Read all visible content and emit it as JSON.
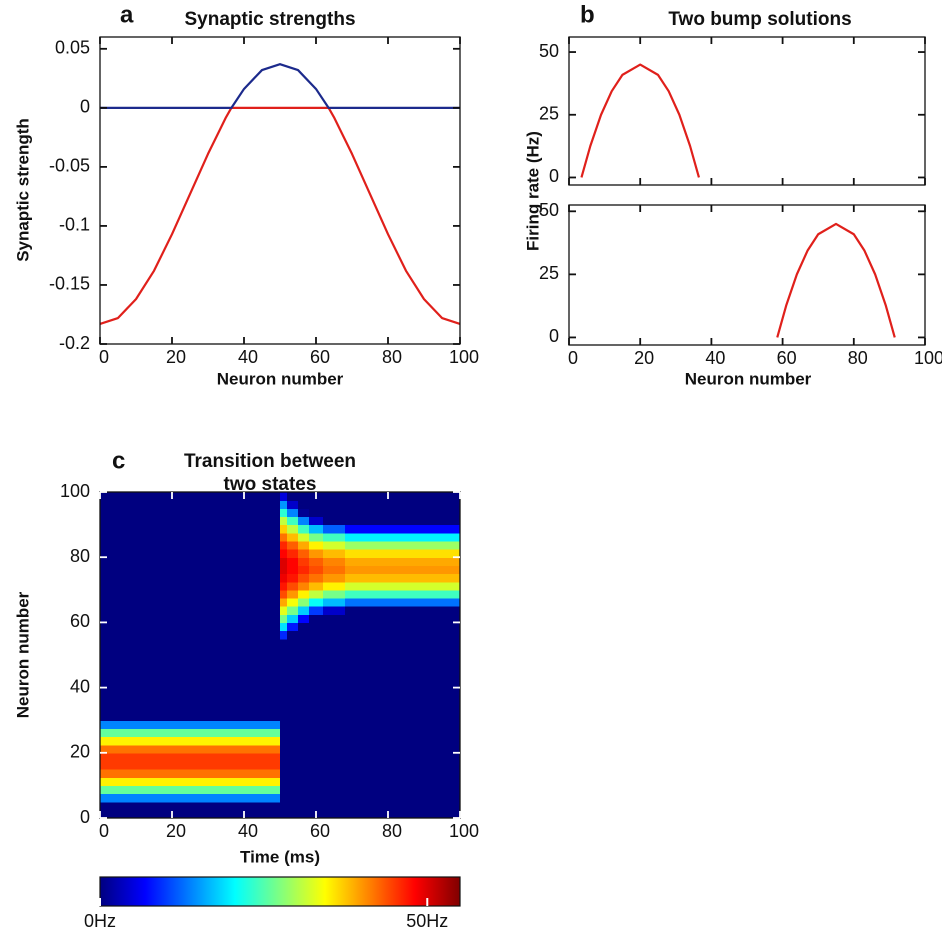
{
  "chart_data": [
    {
      "type": "line",
      "panel": "a",
      "title": "Synaptic strengths",
      "xlabel": "Neuron number",
      "ylabel": "Synaptic strength",
      "x": [
        0,
        5,
        10,
        15,
        20,
        25,
        30,
        35,
        36.5,
        40,
        45,
        50,
        55,
        60,
        63.5,
        65,
        70,
        75,
        80,
        85,
        90,
        95,
        100
      ],
      "series": [
        {
          "color": "#e0201b",
          "values": [
            -0.183,
            -0.178,
            -0.162,
            -0.138,
            -0.107,
            -0.073,
            -0.039,
            -0.008,
            0,
            0,
            0,
            0,
            0,
            0,
            0,
            -0.008,
            -0.039,
            -0.073,
            -0.107,
            -0.138,
            -0.162,
            -0.178,
            -0.183
          ]
        },
        {
          "color": "#1c2a8c",
          "values": [
            0,
            0,
            0,
            0,
            0,
            0,
            0,
            0,
            0,
            0.016,
            0.032,
            0.037,
            0.032,
            0.016,
            0,
            0,
            0,
            0,
            0,
            0,
            0,
            0,
            0
          ]
        }
      ],
      "xlim": [
        0,
        100
      ],
      "xticks": [
        0,
        20,
        40,
        60,
        80,
        100
      ],
      "ylim": [
        -0.2,
        0.06
      ],
      "yticks": [
        0.05,
        0,
        -0.05,
        -0.1,
        -0.15,
        -0.2
      ],
      "grid": false
    },
    {
      "type": "line",
      "panel": "b",
      "title": "Two bump solutions",
      "ylabel": "Firing rate (Hz)",
      "x": [
        3.5,
        6,
        9,
        12,
        15,
        20,
        25,
        28,
        31,
        34,
        36.5
      ],
      "series": [
        {
          "color": "#e0201b",
          "values": [
            0,
            12.6,
            25,
            34.4,
            40.9,
            45,
            40.9,
            34.4,
            25,
            12.6,
            0
          ]
        }
      ],
      "xlim": [
        0,
        100
      ],
      "xticks": [
        0,
        20,
        40,
        60,
        80,
        100
      ],
      "show_xtick_labels": false,
      "ylim": [
        -3,
        56
      ],
      "yticks": [
        0,
        25,
        50
      ],
      "grid": false
    },
    {
      "type": "line",
      "xlabel": "Neuron number",
      "x": [
        58.5,
        61,
        64,
        67,
        70,
        75,
        80,
        83,
        86,
        89,
        91.5
      ],
      "series": [
        {
          "color": "#e0201b",
          "values": [
            0,
            12.6,
            25,
            34.4,
            40.9,
            45,
            40.9,
            34.4,
            25,
            12.6,
            0
          ]
        }
      ],
      "xlim": [
        0,
        100
      ],
      "xticks": [
        0,
        20,
        40,
        60,
        80,
        100
      ],
      "ylim": [
        -3,
        52.5
      ],
      "yticks": [
        0,
        25,
        50
      ],
      "grid": false
    },
    {
      "type": "heatmap",
      "panel": "c",
      "title": [
        "Transition between",
        "two states"
      ],
      "xlabel": "Time (ms)",
      "ylabel": "Neuron number",
      "xbins": [
        0,
        50,
        52,
        55,
        58,
        62,
        68,
        100
      ],
      "ybins": [
        0,
        2.5,
        5,
        7.5,
        10,
        12.5,
        15,
        17.5,
        20,
        22.5,
        25,
        27.5,
        30,
        32.5,
        35,
        37.5,
        40,
        42.5,
        45,
        47.5,
        50,
        52.5,
        55,
        57.5,
        60,
        62.5,
        65,
        67.5,
        70,
        72.5,
        75,
        77.5,
        80,
        82.5,
        85,
        87.5,
        90,
        92.5,
        95,
        97.5,
        100
      ],
      "z": [
        [
          0,
          0,
          14,
          26,
          35,
          42,
          45,
          45,
          42,
          35,
          26,
          14,
          0,
          0,
          0,
          0,
          0,
          0,
          0,
          0,
          0,
          0,
          0,
          0,
          0,
          0,
          0,
          0,
          0,
          0,
          0,
          0,
          0,
          0,
          0,
          0,
          0,
          0,
          0,
          0
        ],
        [
          0,
          0,
          0,
          0,
          0,
          0,
          0,
          0,
          0,
          0,
          0,
          0,
          0,
          0,
          0,
          0,
          0,
          0,
          0,
          0,
          0,
          0,
          9,
          19,
          27,
          33,
          39,
          44,
          47,
          49,
          50,
          50,
          48,
          46,
          42,
          37,
          31,
          23,
          15,
          5
        ],
        [
          0,
          0,
          0,
          0,
          0,
          0,
          0,
          0,
          0,
          0,
          0,
          0,
          0,
          0,
          0,
          0,
          0,
          0,
          0,
          0,
          0,
          0,
          0,
          8,
          18,
          27,
          34,
          40,
          44,
          47,
          48,
          48,
          46,
          43,
          38,
          31,
          24,
          14,
          4,
          0
        ],
        [
          0,
          0,
          0,
          0,
          0,
          0,
          0,
          0,
          0,
          0,
          0,
          0,
          0,
          0,
          0,
          0,
          0,
          0,
          0,
          0,
          0,
          0,
          0,
          0,
          7,
          18,
          28,
          35,
          41,
          44,
          46,
          45,
          43,
          39,
          32,
          24,
          14,
          1,
          0,
          0
        ],
        [
          0,
          0,
          0,
          0,
          0,
          0,
          0,
          0,
          0,
          0,
          0,
          0,
          0,
          0,
          0,
          0,
          0,
          0,
          0,
          0,
          0,
          0,
          0,
          0,
          0,
          10,
          21,
          31,
          38,
          42,
          44,
          43,
          40,
          35,
          27,
          17,
          4,
          0,
          0,
          0
        ],
        [
          0,
          0,
          0,
          0,
          0,
          0,
          0,
          0,
          0,
          0,
          0,
          0,
          0,
          0,
          0,
          0,
          0,
          0,
          0,
          0,
          0,
          0,
          0,
          0,
          0,
          4,
          17,
          27,
          35,
          40,
          42,
          41,
          38,
          32,
          24,
          12,
          0,
          0,
          0,
          0
        ],
        [
          0,
          0,
          0,
          0,
          0,
          0,
          0,
          0,
          0,
          0,
          0,
          0,
          0,
          0,
          0,
          0,
          0,
          0,
          0,
          0,
          0,
          0,
          0,
          0,
          0,
          0,
          13,
          24,
          32,
          38,
          40,
          39,
          36,
          29,
          20,
          7,
          0,
          0,
          0,
          0
        ]
      ],
      "colormap": "jet",
      "colorbar": {
        "clim": [
          0,
          55
        ],
        "ticks": [
          {
            "value": 0,
            "label": "0Hz"
          },
          {
            "value": 50,
            "label": "50Hz"
          }
        ]
      },
      "xlim": [
        0,
        100
      ],
      "xticks": [
        0,
        20,
        40,
        60,
        80,
        100
      ],
      "ylim": [
        0,
        100
      ],
      "yticks": [
        0,
        20,
        40,
        60,
        80,
        100
      ]
    }
  ]
}
